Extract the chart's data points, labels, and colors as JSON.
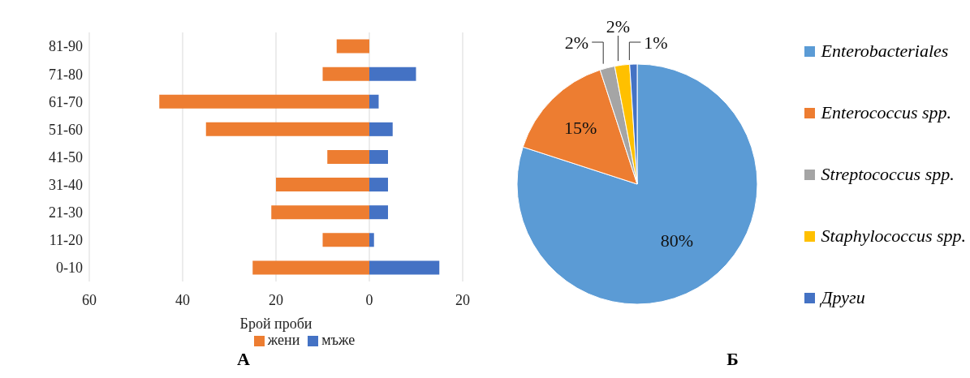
{
  "chart_data": [
    {
      "type": "bar",
      "orientation": "horizontal",
      "stacked": true,
      "categories": [
        "81-90",
        "71-80",
        "61-70",
        "51-60",
        "41-50",
        "31-40",
        "21-30",
        "11-20",
        "0-10"
      ],
      "series": [
        {
          "name": "жени",
          "color": "#ed7d31",
          "values": [
            -7,
            -10,
            -45,
            -35,
            -9,
            -20,
            -21,
            -10,
            -25
          ]
        },
        {
          "name": "мъже",
          "color": "#4472c4",
          "values": [
            null,
            10,
            2,
            5,
            4,
            4,
            4,
            1,
            15
          ]
        }
      ],
      "xlim": [
        -60,
        20
      ],
      "xticks": [
        {
          "value": -60,
          "label": "60"
        },
        {
          "value": -40,
          "label": "40"
        },
        {
          "value": -20,
          "label": "20"
        },
        0,
        20
      ],
      "xlabel": "Брой проби",
      "grid": "x",
      "legend": "bottom",
      "annotations": [
        "А"
      ]
    },
    {
      "type": "pie",
      "categories": [
        "Enterobacteriales",
        "Enterococcus spp.",
        "Streptococcus spp.",
        "Staphylococcus spp.",
        "Други"
      ],
      "values": [
        80,
        15,
        2,
        2,
        1
      ],
      "colors": [
        "#5b9bd5",
        "#ed7d31",
        "#a5a5a5",
        "#ffc000",
        "#4472c4"
      ],
      "value_labels": [
        "80%",
        "15%",
        "2%",
        "2%",
        "1%"
      ],
      "legend": "right",
      "annotations": [
        "Б"
      ]
    }
  ]
}
